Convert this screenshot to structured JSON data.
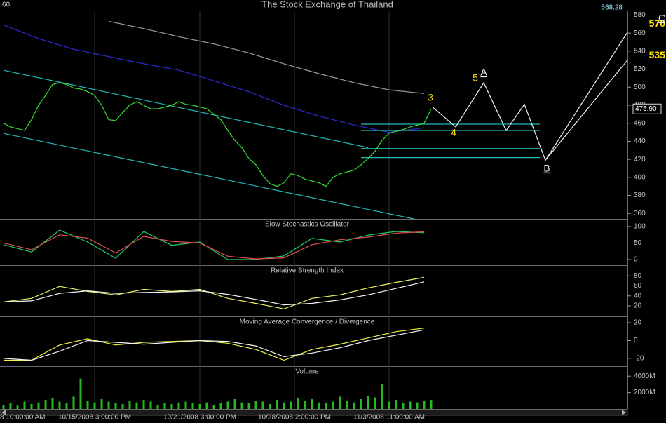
{
  "window_label": "60",
  "header_right": "568.28",
  "chart_data": [
    {
      "type": "line",
      "title": "The Stock Exchange of Thailand",
      "xlim": [
        0,
        89
      ],
      "ylim": [
        354,
        585
      ],
      "yticks": [
        360,
        380,
        400,
        420,
        440,
        460,
        480,
        500,
        520,
        540,
        560,
        580
      ],
      "last_price": {
        "value": 475.9,
        "label": "475.90"
      },
      "targets": [
        570,
        535
      ],
      "target_color": "#ffe400",
      "wave_labels": [
        "3",
        "4",
        "5",
        "A",
        "B",
        "C"
      ],
      "series": [
        {
          "color": "#9a9a9a",
          "x": [
            15,
            20,
            25,
            30,
            35,
            40,
            45,
            50,
            55,
            60
          ],
          "values": [
            573,
            565,
            556,
            548,
            538,
            526,
            515,
            505,
            497,
            493
          ]
        },
        {
          "color": "#2a2ad0",
          "x": [
            0,
            5,
            10,
            15,
            20,
            25,
            30,
            35,
            40,
            45,
            50,
            55,
            60
          ],
          "values": [
            569,
            554,
            542,
            534,
            526,
            519,
            507,
            495,
            480,
            468,
            458,
            450,
            455
          ]
        },
        {
          "color": "#22b8b8",
          "x": [
            0,
            58.5
          ],
          "values": [
            448.7,
            354
          ]
        },
        {
          "color": "#22b8b8",
          "x": [
            0,
            52
          ],
          "values": [
            518.7,
            433
          ]
        },
        {
          "color": "#22b8b8",
          "x": [
            51,
            76.5
          ],
          "values": [
            459,
            459
          ]
        },
        {
          "color": "#22b8b8",
          "x": [
            51,
            76.5
          ],
          "values": [
            452,
            452
          ]
        },
        {
          "color": "#22b8b8",
          "x": [
            51,
            76.5
          ],
          "values": [
            432,
            432
          ]
        },
        {
          "color": "#22b8b8",
          "x": [
            51,
            76.5
          ],
          "values": [
            422,
            422
          ]
        },
        {
          "color": "#33dd33",
          "values": [
            460,
            456,
            454,
            452,
            464,
            480,
            491,
            503,
            505,
            503,
            499,
            498,
            495,
            491,
            480,
            464,
            463,
            472,
            480,
            484,
            480,
            476,
            476,
            478,
            480,
            484,
            481,
            480,
            478,
            476,
            470,
            464,
            452,
            441,
            433,
            421,
            414,
            402,
            393,
            390,
            394,
            404,
            402,
            398,
            396,
            394,
            390,
            400,
            404,
            406,
            408,
            414,
            421,
            429,
            441,
            449,
            451,
            453,
            456,
            458,
            460,
            475.9
          ]
        },
        {
          "color": "#e8f4ff",
          "x": [
            61.2,
            64.5,
            68.5,
            71.7,
            74.3,
            77.3,
            89
          ],
          "values": [
            478,
            456,
            505,
            452,
            481,
            419,
            561
          ]
        },
        {
          "color": "#e8f4ff",
          "x": [
            77.3,
            89
          ],
          "values": [
            419,
            530
          ]
        }
      ]
    },
    {
      "type": "line",
      "title": "Slow Stochastics Oscillator",
      "xlim": [
        0,
        89
      ],
      "ylim": [
        -17,
        121
      ],
      "yticks": [
        0,
        50,
        100
      ],
      "series": [
        {
          "color": "#22cc66",
          "x": [
            0,
            4,
            8,
            12,
            16,
            20,
            24,
            28,
            32,
            36,
            40,
            44,
            48,
            52,
            56,
            60
          ],
          "values": [
            45,
            23,
            89,
            53,
            4,
            85,
            43,
            53,
            0,
            0,
            11,
            64,
            53,
            74,
            85,
            81
          ]
        },
        {
          "color": "#e05050",
          "x": [
            0,
            4,
            8,
            12,
            16,
            20,
            24,
            28,
            32,
            36,
            40,
            44,
            48,
            52,
            56,
            60
          ],
          "values": [
            50,
            30,
            75,
            65,
            20,
            70,
            55,
            50,
            10,
            2,
            5,
            45,
            60,
            68,
            80,
            84
          ]
        }
      ]
    },
    {
      "type": "line",
      "title": "Relative Strength Index",
      "xlim": [
        0,
        89
      ],
      "ylim": [
        -1,
        100
      ],
      "yticks": [
        20,
        40,
        60,
        80
      ],
      "series": [
        {
          "color": "#f0f060",
          "x": [
            0,
            4,
            8,
            12,
            16,
            20,
            24,
            28,
            32,
            36,
            40,
            44,
            48,
            52,
            56,
            60
          ],
          "values": [
            28,
            35,
            59,
            49,
            42,
            53,
            49,
            53,
            35,
            25,
            14,
            35,
            42,
            56,
            67,
            77
          ]
        },
        {
          "color": "#f4f4f4",
          "x": [
            0,
            4,
            8,
            12,
            16,
            20,
            24,
            28,
            32,
            36,
            40,
            44,
            48,
            52,
            56,
            60
          ],
          "values": [
            28,
            30,
            45,
            50,
            45,
            47,
            48,
            50,
            43,
            33,
            22,
            25,
            32,
            42,
            55,
            68
          ]
        }
      ]
    },
    {
      "type": "line",
      "title": "Moving Average Convergence / Divergence",
      "xlim": [
        0,
        89
      ],
      "ylim": [
        -28.7,
        26.3
      ],
      "yticks": [
        -20,
        0,
        20
      ],
      "series": [
        {
          "color": "#f0f040",
          "x": [
            0,
            4,
            8,
            12,
            16,
            20,
            24,
            28,
            32,
            36,
            40,
            44,
            48,
            52,
            56,
            60
          ],
          "values": [
            -22,
            -22,
            -5,
            2,
            -5,
            -2,
            -1,
            0,
            -3,
            -10,
            -22,
            -10,
            -4,
            3,
            10,
            14
          ]
        },
        {
          "color": "#f4f4f4",
          "x": [
            0,
            4,
            8,
            12,
            16,
            20,
            24,
            28,
            32,
            36,
            40,
            44,
            48,
            52,
            56,
            60
          ],
          "values": [
            -20,
            -22,
            -12,
            0,
            -2,
            -4,
            -2,
            0,
            -1,
            -6,
            -18,
            -14,
            -8,
            0,
            6,
            12
          ]
        }
      ]
    },
    {
      "type": "bar",
      "title": "Volume",
      "xlim": [
        0,
        89
      ],
      "ylim": [
        0,
        5130
      ],
      "yticks": [
        {
          "value": 2000,
          "label": "2000M"
        },
        {
          "value": 4000,
          "label": "4000M"
        }
      ],
      "xticks": [
        {
          "value": 0,
          "label": "8 10:00:00 AM"
        },
        {
          "value": 13,
          "label": "10/15/2008 3:00:00 PM"
        },
        {
          "value": 28,
          "label": "10/21/2008 3:00:00 PM"
        },
        {
          "value": 41.5,
          "label": "10/28/2008 2:00:00 PM"
        },
        {
          "value": 55,
          "label": "11/3/2008 11:00:00 AM"
        }
      ],
      "color": "#22bb22",
      "values": [
        500,
        700,
        400,
        900,
        600,
        800,
        1100,
        1300,
        900,
        700,
        1500,
        3700,
        1000,
        800,
        1200,
        900,
        700,
        600,
        1000,
        800,
        1100,
        900,
        500,
        700,
        600,
        800,
        900,
        700,
        600,
        800,
        500,
        700,
        900,
        1200,
        800,
        700,
        1000,
        900,
        600,
        1100,
        800,
        900,
        1300,
        1000,
        1200,
        800,
        700,
        900,
        1500,
        1000,
        800,
        1200,
        1600,
        1400,
        3000,
        900,
        1100,
        700,
        900,
        800,
        1000,
        1100
      ]
    }
  ]
}
